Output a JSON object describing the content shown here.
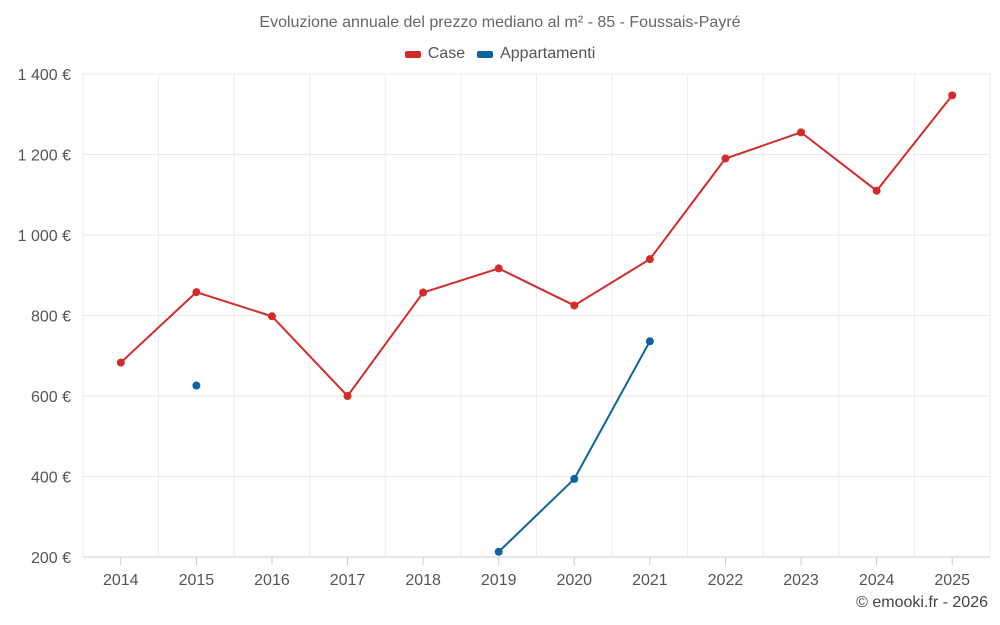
{
  "chart_data": {
    "type": "line",
    "title": "Evoluzione annuale del prezzo mediano al m² - 85 - Foussais-Payré",
    "categories": [
      "2014",
      "2015",
      "2016",
      "2017",
      "2018",
      "2019",
      "2020",
      "2021",
      "2022",
      "2023",
      "2024",
      "2025"
    ],
    "series": [
      {
        "name": "Case",
        "color": "#d42a2a",
        "values": [
          683,
          858,
          798,
          600,
          857,
          917,
          825,
          940,
          1190,
          1255,
          1110,
          1347
        ]
      },
      {
        "name": "Appartamenti",
        "color": "#0e64a0",
        "values": [
          null,
          626,
          null,
          null,
          null,
          213,
          394,
          736,
          null,
          null,
          null,
          null
        ]
      }
    ],
    "ylim": [
      200,
      1400
    ],
    "yticks": [
      200,
      400,
      600,
      800,
      1000,
      1200,
      1400
    ],
    "ytick_labels": [
      "200 €",
      "400 €",
      "600 €",
      "800 €",
      "1 000 €",
      "1 200 €",
      "1 400 €"
    ],
    "xlabel": "",
    "ylabel": "",
    "grid": true,
    "legend_position": "top-center"
  },
  "credit": "© emooki.fr - 2026"
}
